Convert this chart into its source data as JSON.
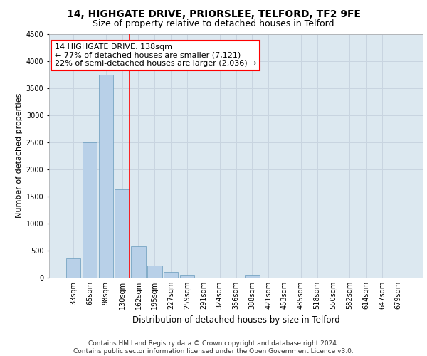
{
  "title1": "14, HIGHGATE DRIVE, PRIORSLEE, TELFORD, TF2 9FE",
  "title2": "Size of property relative to detached houses in Telford",
  "xlabel": "Distribution of detached houses by size in Telford",
  "ylabel": "Number of detached properties",
  "categories": [
    "33sqm",
    "65sqm",
    "98sqm",
    "130sqm",
    "162sqm",
    "195sqm",
    "227sqm",
    "259sqm",
    "291sqm",
    "324sqm",
    "356sqm",
    "388sqm",
    "421sqm",
    "453sqm",
    "485sqm",
    "518sqm",
    "550sqm",
    "582sqm",
    "614sqm",
    "647sqm",
    "679sqm"
  ],
  "values": [
    350,
    2500,
    3750,
    1625,
    575,
    220,
    100,
    55,
    0,
    0,
    0,
    55,
    0,
    0,
    0,
    0,
    0,
    0,
    0,
    0,
    0
  ],
  "bar_color": "#b8d0e8",
  "bar_edge_color": "#6699bb",
  "annotation_text": "14 HIGHGATE DRIVE: 138sqm\n← 77% of detached houses are smaller (7,121)\n22% of semi-detached houses are larger (2,036) →",
  "annotation_box_color": "white",
  "annotation_box_edge_color": "red",
  "vline_color": "red",
  "vline_pos": 3.45,
  "ylim": [
    0,
    4500
  ],
  "yticks": [
    0,
    500,
    1000,
    1500,
    2000,
    2500,
    3000,
    3500,
    4000,
    4500
  ],
  "grid_color": "#c8d4e0",
  "background_color": "#dce8f0",
  "footer": "Contains HM Land Registry data © Crown copyright and database right 2024.\nContains public sector information licensed under the Open Government Licence v3.0.",
  "title1_fontsize": 10,
  "title2_fontsize": 9,
  "xlabel_fontsize": 8.5,
  "ylabel_fontsize": 8,
  "tick_fontsize": 7,
  "annotation_fontsize": 8,
  "footer_fontsize": 6.5
}
